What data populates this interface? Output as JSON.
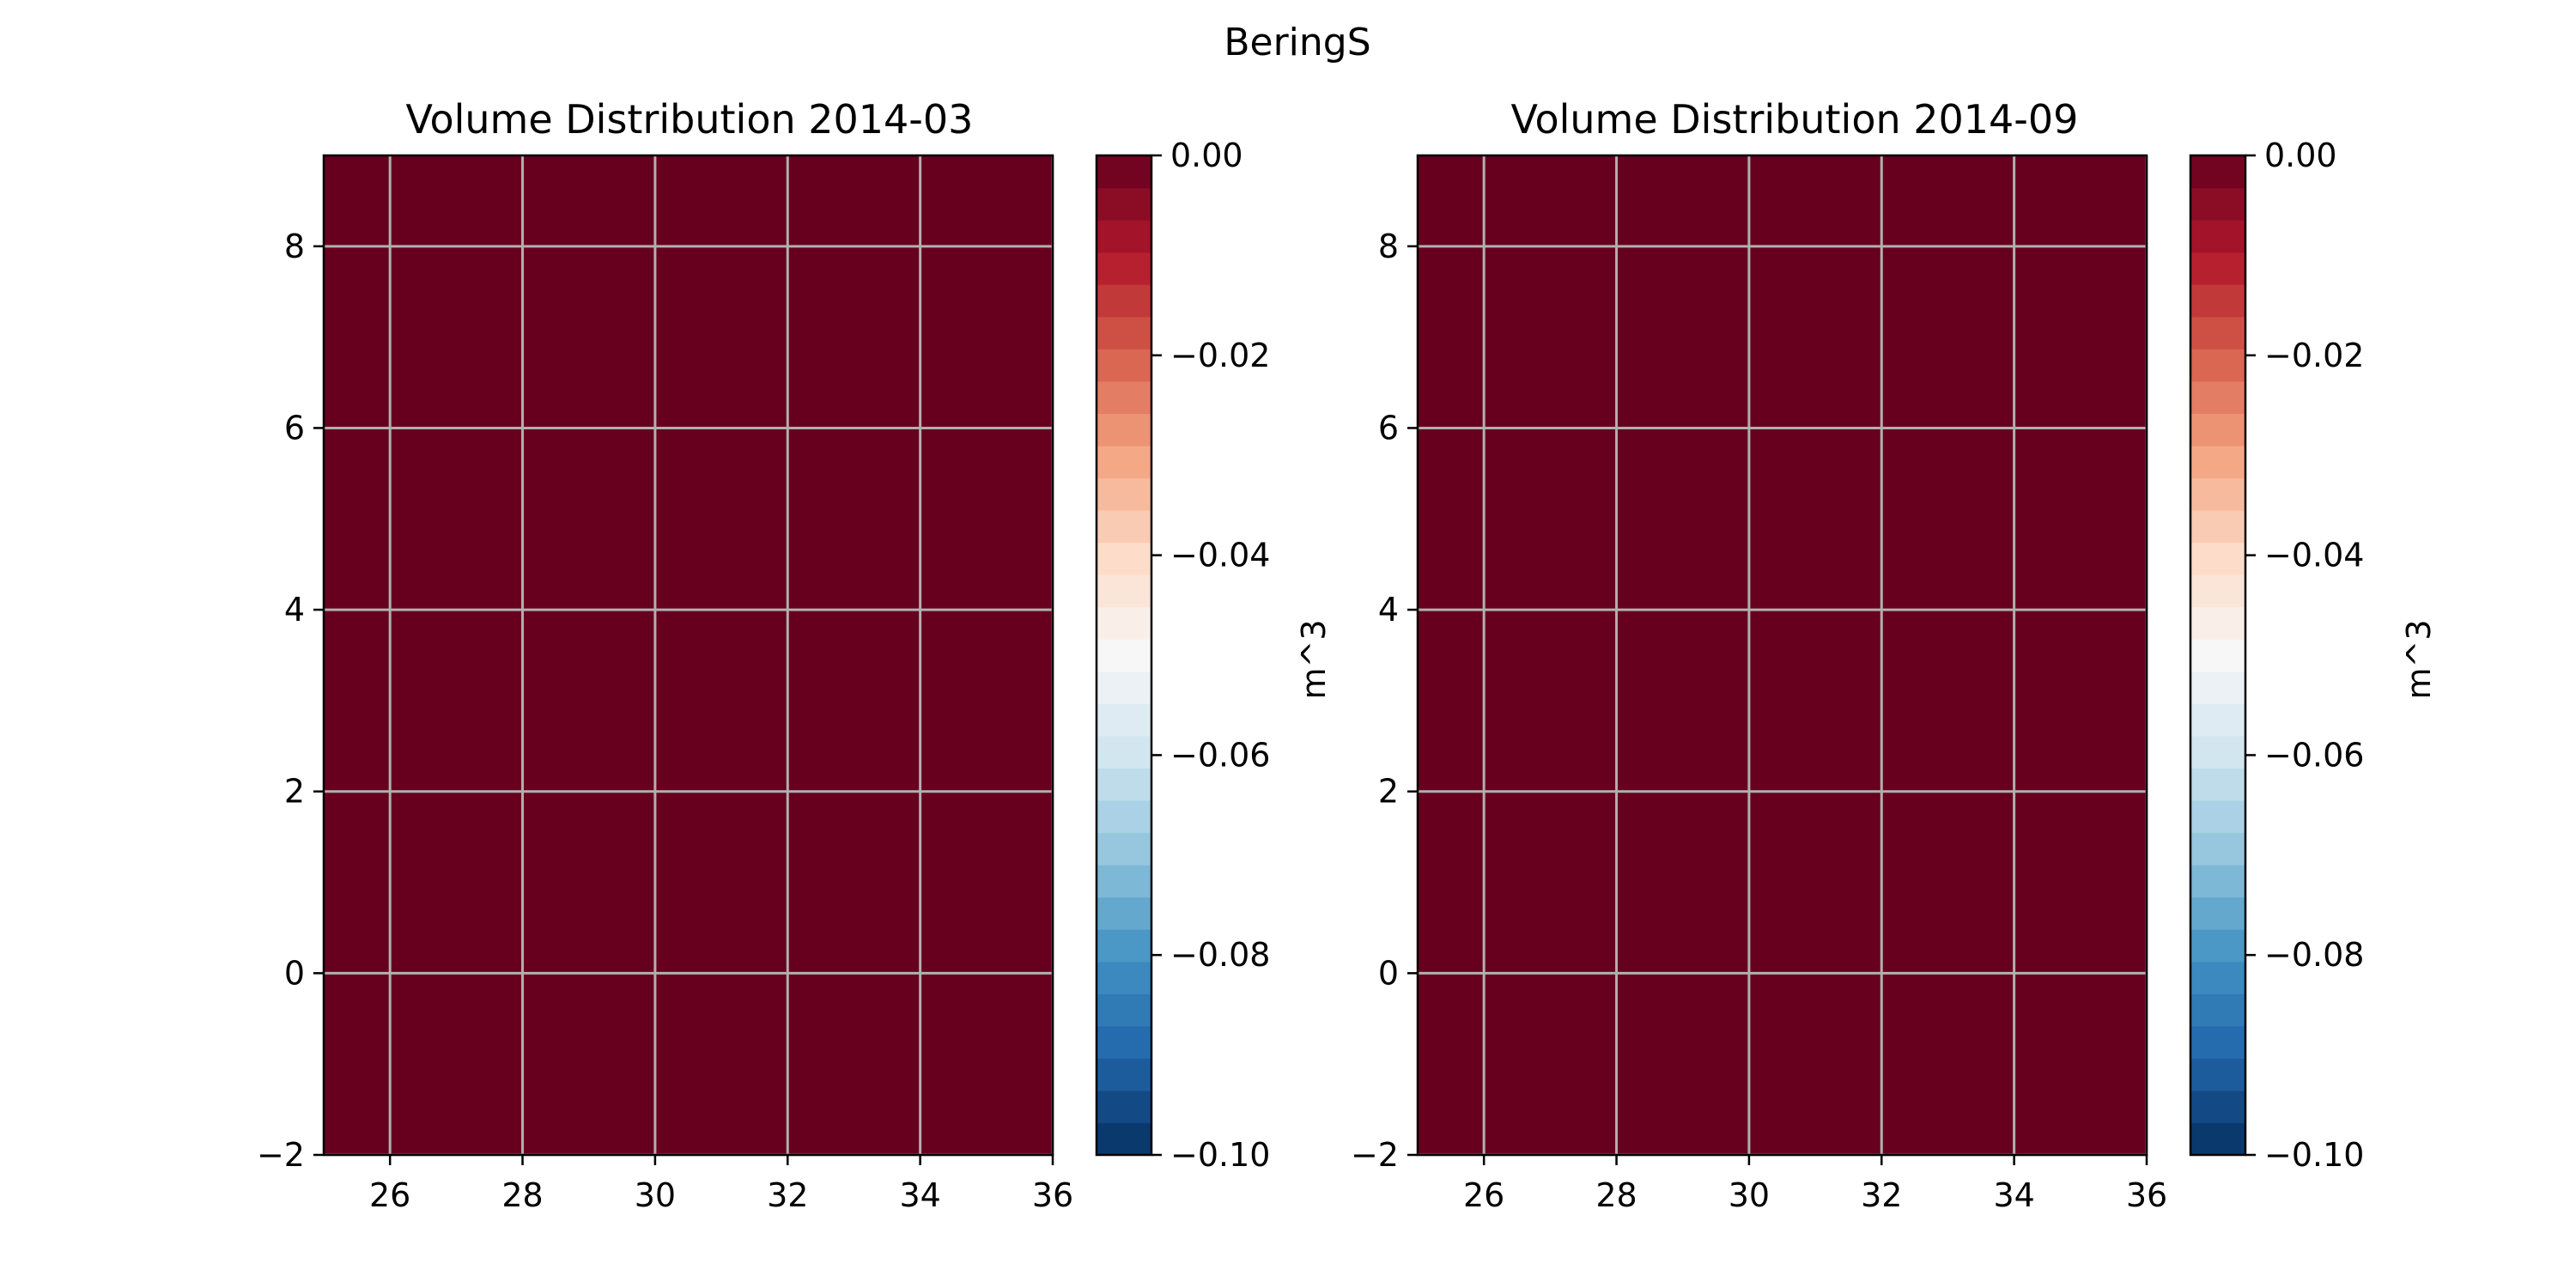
{
  "figure": {
    "title": "BeringS"
  },
  "chart_data": [
    {
      "type": "heatmap",
      "title": "Volume Distribution 2014-03",
      "xlabel": "",
      "ylabel": "",
      "xlim": [
        25,
        36
      ],
      "ylim": [
        -2,
        9
      ],
      "x_ticks": [
        26,
        28,
        30,
        32,
        34,
        36
      ],
      "y_ticks": [
        -2,
        0,
        2,
        4,
        6,
        8
      ],
      "grid": true,
      "field": {
        "x_range": [
          25,
          36
        ],
        "y_range": [
          -2,
          9
        ],
        "value": 0.0
      },
      "colorbar": {
        "label": "m^3",
        "vmin": -0.1,
        "vmax": 0.0,
        "levels": 31,
        "colormap": "RdBu_r",
        "ticks": [
          0.0,
          -0.02,
          -0.04,
          -0.06,
          -0.08,
          -0.1
        ],
        "tick_labels": [
          "0.00",
          "−0.02",
          "−0.04",
          "−0.06",
          "−0.08",
          "−0.10"
        ]
      }
    },
    {
      "type": "heatmap",
      "title": "Volume Distribution 2014-09",
      "xlabel": "",
      "ylabel": "",
      "xlim": [
        25,
        36
      ],
      "ylim": [
        -2,
        9
      ],
      "x_ticks": [
        26,
        28,
        30,
        32,
        34,
        36
      ],
      "y_ticks": [
        -2,
        0,
        2,
        4,
        6,
        8
      ],
      "grid": true,
      "field": {
        "x_range": [
          25,
          36
        ],
        "y_range": [
          -2,
          9
        ],
        "value": 0.0
      },
      "colorbar": {
        "label": "m^3",
        "vmin": -0.1,
        "vmax": 0.0,
        "levels": 31,
        "colormap": "RdBu_r",
        "ticks": [
          0.0,
          -0.02,
          -0.04,
          -0.06,
          -0.08,
          -0.1
        ],
        "tick_labels": [
          "0.00",
          "−0.02",
          "−0.04",
          "−0.06",
          "−0.08",
          "−0.10"
        ]
      }
    }
  ],
  "colors": {
    "field_fill": "#67001f",
    "grid": "#b0b0b0",
    "axes": "#000000",
    "colormap_stops": [
      "#053061",
      "#2166ac",
      "#4393c3",
      "#92c5de",
      "#d1e5f0",
      "#f7f7f7",
      "#fddbc7",
      "#f4a582",
      "#d6604d",
      "#b2182b",
      "#67001f"
    ]
  }
}
